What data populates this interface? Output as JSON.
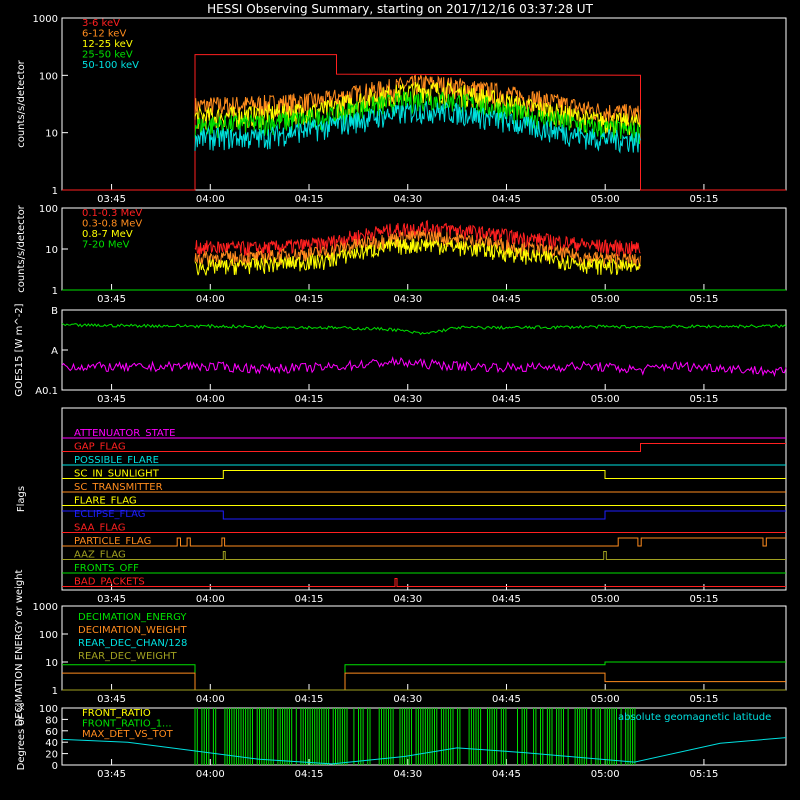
{
  "title": "HESSI Observing Summary, starting on 2017/12/16 03:37:28 UT",
  "time_ticks": [
    "03:45",
    "04:00",
    "04:15",
    "04:30",
    "04:45",
    "05:00",
    "05:15"
  ],
  "time_tick_minutes": [
    7.53,
    22.53,
    37.53,
    52.53,
    67.53,
    82.53,
    97.53
  ],
  "colors": {
    "axis": "#ffffff",
    "red": "#ff2020",
    "orange": "#ff8c1e",
    "yellow": "#ffff00",
    "green": "#00e000",
    "cyan": "#00e0e0",
    "magenta": "#ff00ff",
    "blue": "#1e1eff",
    "olive": "#a0a020"
  },
  "chart_data": [
    {
      "type": "line",
      "ylabel": "counts/s/detector",
      "ylog": true,
      "ylim": [
        1,
        1000
      ],
      "ytick_labels": [
        "1",
        "10",
        "100",
        "1000"
      ],
      "ytick_values": [
        1,
        10,
        100,
        1000
      ],
      "series": [
        {
          "name": "3-6 keV",
          "color": "#ff2020",
          "x": [
            0,
            20.2,
            20.2,
            41.7,
            41.7,
            87.9,
            87.9,
            110
          ],
          "y": [
            1,
            1,
            230,
            230,
            105,
            100,
            1,
            1
          ]
        },
        {
          "name": "6-12 keV",
          "color": "#ff8c1e",
          "x": [
            20.2,
            30,
            40,
            50,
            55,
            60,
            70,
            80,
            87.9
          ],
          "y": [
            28,
            30,
            35,
            58,
            70,
            62,
            40,
            24,
            20
          ]
        },
        {
          "name": "12-25 keV",
          "color": "#ffff00",
          "x": [
            20.2,
            30,
            40,
            50,
            55,
            60,
            70,
            80,
            87.9
          ],
          "y": [
            18,
            20,
            24,
            45,
            55,
            48,
            28,
            16,
            14
          ]
        },
        {
          "name": "25-50 keV",
          "color": "#00e000",
          "x": [
            20.2,
            30,
            40,
            50,
            55,
            60,
            70,
            80,
            87.9
          ],
          "y": [
            13,
            14,
            18,
            32,
            38,
            34,
            20,
            12,
            10
          ]
        },
        {
          "name": "50-100 keV",
          "color": "#00e0e0",
          "x": [
            20.2,
            30,
            40,
            50,
            55,
            60,
            70,
            80,
            87.9
          ],
          "y": [
            8,
            8,
            12,
            20,
            24,
            22,
            13,
            8,
            7
          ]
        }
      ]
    },
    {
      "type": "line",
      "ylabel": "counts/s/detector",
      "ylog": true,
      "ylim": [
        1,
        100
      ],
      "ytick_labels": [
        "1",
        "10",
        "100"
      ],
      "ytick_values": [
        1,
        10,
        100
      ],
      "series": [
        {
          "name": "0.1-0.3 MeV",
          "color": "#ff2020",
          "x": [
            20.2,
            30,
            40,
            50,
            55,
            60,
            70,
            80,
            87.9
          ],
          "y": [
            11,
            10,
            13,
            28,
            33,
            28,
            18,
            12,
            10
          ]
        },
        {
          "name": "0.3-0.8 MeV",
          "color": "#ff8c1e",
          "x": [
            20.2,
            30,
            40,
            50,
            55,
            60,
            70,
            80,
            87.9
          ],
          "y": [
            6,
            6,
            8,
            17,
            20,
            17,
            10,
            6,
            5
          ]
        },
        {
          "name": "0.8-7 MeV",
          "color": "#ffff00",
          "x": [
            20.2,
            30,
            40,
            50,
            55,
            60,
            70,
            80,
            87.9
          ],
          "y": [
            3.5,
            4,
            5,
            11,
            13,
            11,
            7,
            4,
            3.5
          ]
        },
        {
          "name": "7-20 MeV",
          "color": "#00e000",
          "x": [
            0,
            110
          ],
          "y": [
            1,
            1
          ]
        }
      ]
    },
    {
      "type": "line",
      "ylabel": "GOES15 [W m^-2]",
      "ytick_labels": [
        "A0.1",
        "A",
        "B"
      ],
      "ylim": [
        0,
        1
      ],
      "series": [
        {
          "name": "GOES high",
          "color": "#00e000",
          "x": [
            0,
            20,
            40,
            50,
            55,
            60,
            70,
            80,
            90,
            110
          ],
          "y": [
            0.81,
            0.8,
            0.78,
            0.76,
            0.7,
            0.78,
            0.78,
            0.79,
            0.79,
            0.8
          ]
        },
        {
          "name": "GOES low",
          "color": "#ff00ff",
          "x": [
            0,
            10,
            20,
            30,
            40,
            50,
            60,
            70,
            80,
            88,
            92,
            100,
            110
          ],
          "y": [
            0.3,
            0.28,
            0.3,
            0.27,
            0.28,
            0.35,
            0.3,
            0.28,
            0.3,
            0.25,
            0.3,
            0.28,
            0.22
          ]
        }
      ]
    },
    {
      "type": "table",
      "ylabel": "Flags",
      "flags": [
        {
          "name": "ATTENUATOR_STATE",
          "color": "#ff00ff",
          "x": [
            0,
            110
          ],
          "y": [
            0,
            0
          ]
        },
        {
          "name": "GAP_FLAG",
          "color": "#ff2020",
          "x": [
            0,
            87.9,
            87.9,
            110
          ],
          "y": [
            0,
            0,
            1,
            1
          ]
        },
        {
          "name": "POSSIBLE_FLARE",
          "color": "#00e0e0",
          "x": [
            0,
            110
          ],
          "y": [
            0,
            0
          ]
        },
        {
          "name": "SC_IN_SUNLIGHT",
          "color": "#ffff00",
          "x": [
            0,
            24.5,
            24.5,
            82.5,
            82.5,
            110
          ],
          "y": [
            0,
            0,
            1,
            1,
            0,
            0
          ]
        },
        {
          "name": "SC_TRANSMITTER",
          "color": "#ff8c1e",
          "x": [
            0,
            110
          ],
          "y": [
            0,
            0
          ]
        },
        {
          "name": "FLARE_FLAG",
          "color": "#ffff00",
          "x": [
            0,
            110
          ],
          "y": [
            0,
            0
          ]
        },
        {
          "name": "ECLIPSE_FLAG",
          "color": "#1e1eff",
          "x": [
            0,
            24.5,
            24.5,
            82.5,
            82.5,
            110
          ],
          "y": [
            1,
            1,
            0,
            0,
            1,
            1
          ]
        },
        {
          "name": "SAA_FLAG",
          "color": "#ff2020",
          "x": [
            0,
            110
          ],
          "y": [
            0,
            0
          ]
        },
        {
          "name": "PARTICLE_FLAG",
          "color": "#ff8c1e",
          "x": [
            0,
            17.5,
            17.5,
            18,
            18,
            19,
            19,
            19.5,
            19.5,
            24.3,
            24.3,
            24.7,
            24.7,
            84.5,
            84.5,
            87.5,
            87.5,
            88,
            88,
            106.5,
            106.5,
            107,
            107,
            110
          ],
          "y": [
            0,
            0,
            1,
            1,
            0,
            0,
            1,
            1,
            0,
            0,
            1,
            1,
            0,
            0,
            1,
            1,
            0,
            0,
            1,
            1,
            0,
            0,
            1,
            1
          ]
        },
        {
          "name": "AAZ_FLAG",
          "color": "#a0a020",
          "x": [
            0,
            24.5,
            24.5,
            24.8,
            24.8,
            82.3,
            82.3,
            82.7,
            82.7,
            110
          ],
          "y": [
            0,
            0,
            1,
            1,
            0,
            0,
            1,
            1,
            0,
            0
          ]
        },
        {
          "name": "FRONTS_OFF",
          "color": "#00e000",
          "x": [
            0,
            110
          ],
          "y": [
            0,
            0
          ]
        },
        {
          "name": "BAD_PACKETS",
          "color": "#ff2020",
          "x": [
            0,
            50.6,
            50.6,
            50.9,
            50.9,
            110
          ],
          "y": [
            0,
            0,
            1,
            1,
            0,
            0
          ]
        }
      ]
    },
    {
      "type": "line",
      "ylabel": "DECIMATION ENERGY or weight",
      "ylog": true,
      "ylim": [
        1,
        1000
      ],
      "ytick_labels": [
        "1",
        "10",
        "100",
        "1000"
      ],
      "ytick_values": [
        1,
        10,
        100,
        1000
      ],
      "series": [
        {
          "name": "DECIMATION_ENERGY",
          "color": "#00e000",
          "x": [
            0,
            20.2,
            20.2,
            43,
            43,
            82.5,
            82.5,
            110
          ],
          "y": [
            8,
            8,
            1,
            1,
            8,
            8,
            10,
            10
          ]
        },
        {
          "name": "DECIMATION_WEIGHT",
          "color": "#ff8c1e",
          "x": [
            0,
            20.2,
            20.2,
            43,
            43,
            82.5,
            82.5,
            110
          ],
          "y": [
            4,
            4,
            1,
            1,
            4,
            4,
            2,
            2
          ]
        },
        {
          "name": "REAR_DEC_CHAN/128",
          "color": "#00e0e0",
          "x": [
            0,
            110
          ],
          "y": [
            1,
            1
          ]
        },
        {
          "name": "REAR_DEC_WEIGHT",
          "color": "#a0a020",
          "x": [
            0,
            110
          ],
          "y": [
            1,
            1
          ]
        }
      ]
    },
    {
      "type": "line",
      "ylabel": "Degrees or %",
      "ylim": [
        0,
        100
      ],
      "ytick_labels": [
        "0",
        "20",
        "40",
        "60",
        "80",
        "100"
      ],
      "ytick_values": [
        0,
        20,
        40,
        60,
        80,
        100
      ],
      "annotation": "absolute geomagnetic latitude",
      "series": [
        {
          "name": "FRONT_RATIO",
          "color": "#ffff00",
          "x": [],
          "y": []
        },
        {
          "name": "FRONT_RATIO_1...",
          "color": "#00e000",
          "x": [
            20.2,
            87.9
          ],
          "y": [
            100,
            100
          ]
        },
        {
          "name": "MAX_DET_VS_TOT",
          "color": "#ff8c1e",
          "x": [],
          "y": []
        },
        {
          "name": "absolute geomagnetic latitude",
          "color": "#00e0e0",
          "x": [
            0,
            10,
            20,
            30,
            41,
            52,
            60,
            70,
            87,
            100,
            110
          ],
          "y": [
            45,
            40,
            25,
            10,
            2,
            15,
            30,
            22,
            5,
            38,
            48
          ]
        }
      ]
    }
  ]
}
